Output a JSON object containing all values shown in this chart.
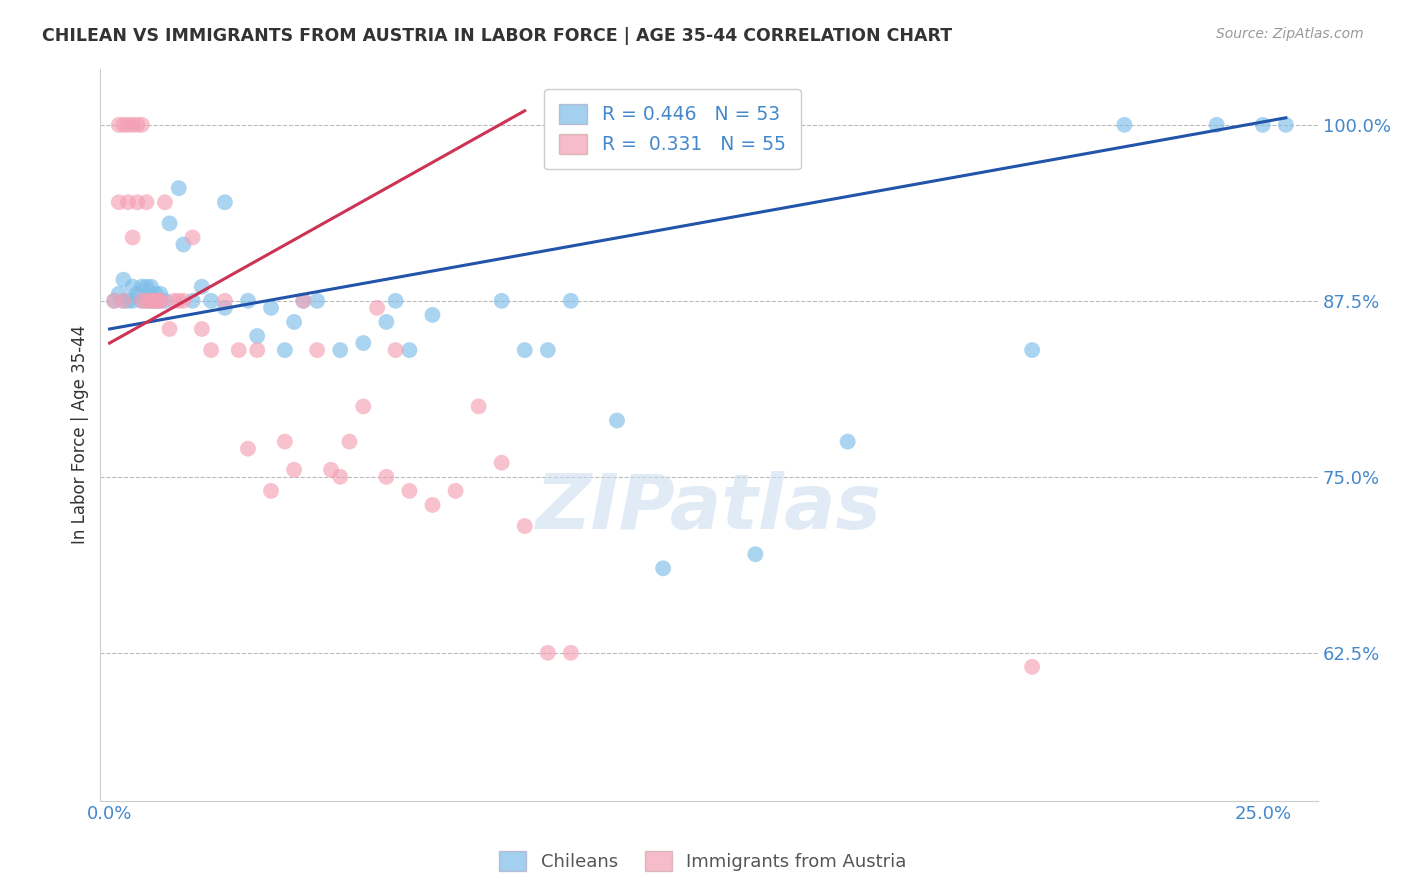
{
  "title": "CHILEAN VS IMMIGRANTS FROM AUSTRIA IN LABOR FORCE | AGE 35-44 CORRELATION CHART",
  "source": "Source: ZipAtlas.com",
  "ylabel": "In Labor Force | Age 35-44",
  "blue_R": 0.446,
  "blue_N": 53,
  "pink_R": 0.331,
  "pink_N": 55,
  "legend_chileans": "Chileans",
  "legend_immigrants": "Immigrants from Austria",
  "xlim": [
    -0.002,
    0.262
  ],
  "ylim": [
    0.52,
    1.04
  ],
  "blue_color": "#7DBDE8",
  "pink_color": "#F4A0B5",
  "blue_line_color": "#2255AA",
  "pink_line_color": "#CC3355",
  "grid_color": "#BBBBBB",
  "title_color": "#333333",
  "axis_label_color": "#333333",
  "tick_label_color": "#4488CC",
  "watermark": "ZIPatlas",
  "blue_line_x0": 0.0,
  "blue_line_y0": 0.855,
  "blue_line_x1": 0.255,
  "blue_line_y1": 1.005,
  "pink_line_x0": 0.0,
  "pink_line_y0": 0.845,
  "pink_line_x1": 0.09,
  "pink_line_y1": 1.01,
  "blue_x": [
    0.001,
    0.002,
    0.003,
    0.003,
    0.004,
    0.005,
    0.005,
    0.006,
    0.007,
    0.007,
    0.008,
    0.008,
    0.009,
    0.009,
    0.01,
    0.01,
    0.011,
    0.011,
    0.012,
    0.013,
    0.015,
    0.016,
    0.018,
    0.02,
    0.022,
    0.025,
    0.025,
    0.03,
    0.032,
    0.035,
    0.038,
    0.04,
    0.042,
    0.045,
    0.05,
    0.055,
    0.06,
    0.062,
    0.065,
    0.07,
    0.085,
    0.09,
    0.095,
    0.1,
    0.11,
    0.12,
    0.14,
    0.16,
    0.2,
    0.22,
    0.24,
    0.25,
    0.255
  ],
  "blue_y": [
    0.875,
    0.88,
    0.875,
    0.89,
    0.875,
    0.875,
    0.885,
    0.88,
    0.875,
    0.885,
    0.875,
    0.885,
    0.875,
    0.885,
    0.875,
    0.88,
    0.88,
    0.875,
    0.875,
    0.93,
    0.955,
    0.915,
    0.875,
    0.885,
    0.875,
    0.945,
    0.87,
    0.875,
    0.85,
    0.87,
    0.84,
    0.86,
    0.875,
    0.875,
    0.84,
    0.845,
    0.86,
    0.875,
    0.84,
    0.865,
    0.875,
    0.84,
    0.84,
    0.875,
    0.79,
    0.685,
    0.695,
    0.775,
    0.84,
    1.0,
    1.0,
    1.0,
    1.0
  ],
  "pink_x": [
    0.001,
    0.002,
    0.002,
    0.003,
    0.003,
    0.004,
    0.004,
    0.005,
    0.005,
    0.006,
    0.006,
    0.007,
    0.007,
    0.008,
    0.008,
    0.009,
    0.009,
    0.01,
    0.01,
    0.011,
    0.011,
    0.012,
    0.013,
    0.014,
    0.015,
    0.016,
    0.018,
    0.02,
    0.022,
    0.025,
    0.028,
    0.03,
    0.032,
    0.035,
    0.038,
    0.04,
    0.042,
    0.045,
    0.048,
    0.05,
    0.052,
    0.055,
    0.058,
    0.06,
    0.062,
    0.065,
    0.07,
    0.075,
    0.08,
    0.085,
    0.09,
    0.095,
    0.1,
    0.105,
    0.2
  ],
  "pink_y": [
    0.875,
    0.945,
    1.0,
    0.875,
    1.0,
    0.945,
    1.0,
    0.92,
    1.0,
    0.945,
    1.0,
    0.875,
    1.0,
    0.875,
    0.945,
    0.875,
    0.875,
    0.875,
    0.875,
    0.875,
    0.875,
    0.945,
    0.855,
    0.875,
    0.875,
    0.875,
    0.92,
    0.855,
    0.84,
    0.875,
    0.84,
    0.77,
    0.84,
    0.74,
    0.775,
    0.755,
    0.875,
    0.84,
    0.755,
    0.75,
    0.775,
    0.8,
    0.87,
    0.75,
    0.84,
    0.74,
    0.73,
    0.74,
    0.8,
    0.76,
    0.715,
    0.625,
    0.625,
    1.0,
    0.615
  ]
}
